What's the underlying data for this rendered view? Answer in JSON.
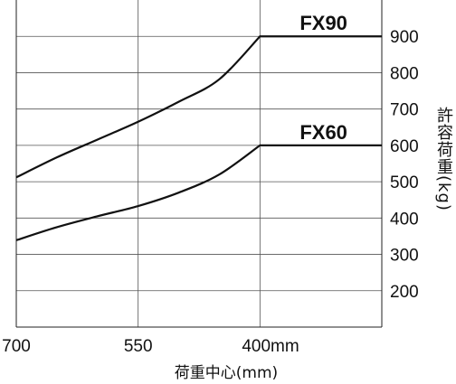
{
  "chart_data": {
    "type": "line",
    "xlabel": "荷重中心(mm)",
    "ylabel": "許容荷重(kg)",
    "x_tick_labels": [
      "700",
      "550",
      "400mm"
    ],
    "y_tick_labels": [
      "200",
      "300",
      "400",
      "500",
      "600",
      "700",
      "800",
      "900"
    ],
    "xlim": [
      700,
      250
    ],
    "ylim": [
      100,
      1000
    ],
    "grid": true,
    "series": [
      {
        "name": "FX90",
        "x": [
          700,
          650,
          600,
          550,
          500,
          450,
          400,
          350,
          250
        ],
        "y": [
          512,
          567,
          616,
          665,
          720,
          782,
          900,
          900,
          900
        ]
      },
      {
        "name": "FX60",
        "x": [
          700,
          650,
          600,
          550,
          500,
          450,
          400,
          350,
          250
        ],
        "y": [
          339,
          375,
          405,
          433,
          470,
          520,
          600,
          600,
          600
        ]
      }
    ]
  }
}
